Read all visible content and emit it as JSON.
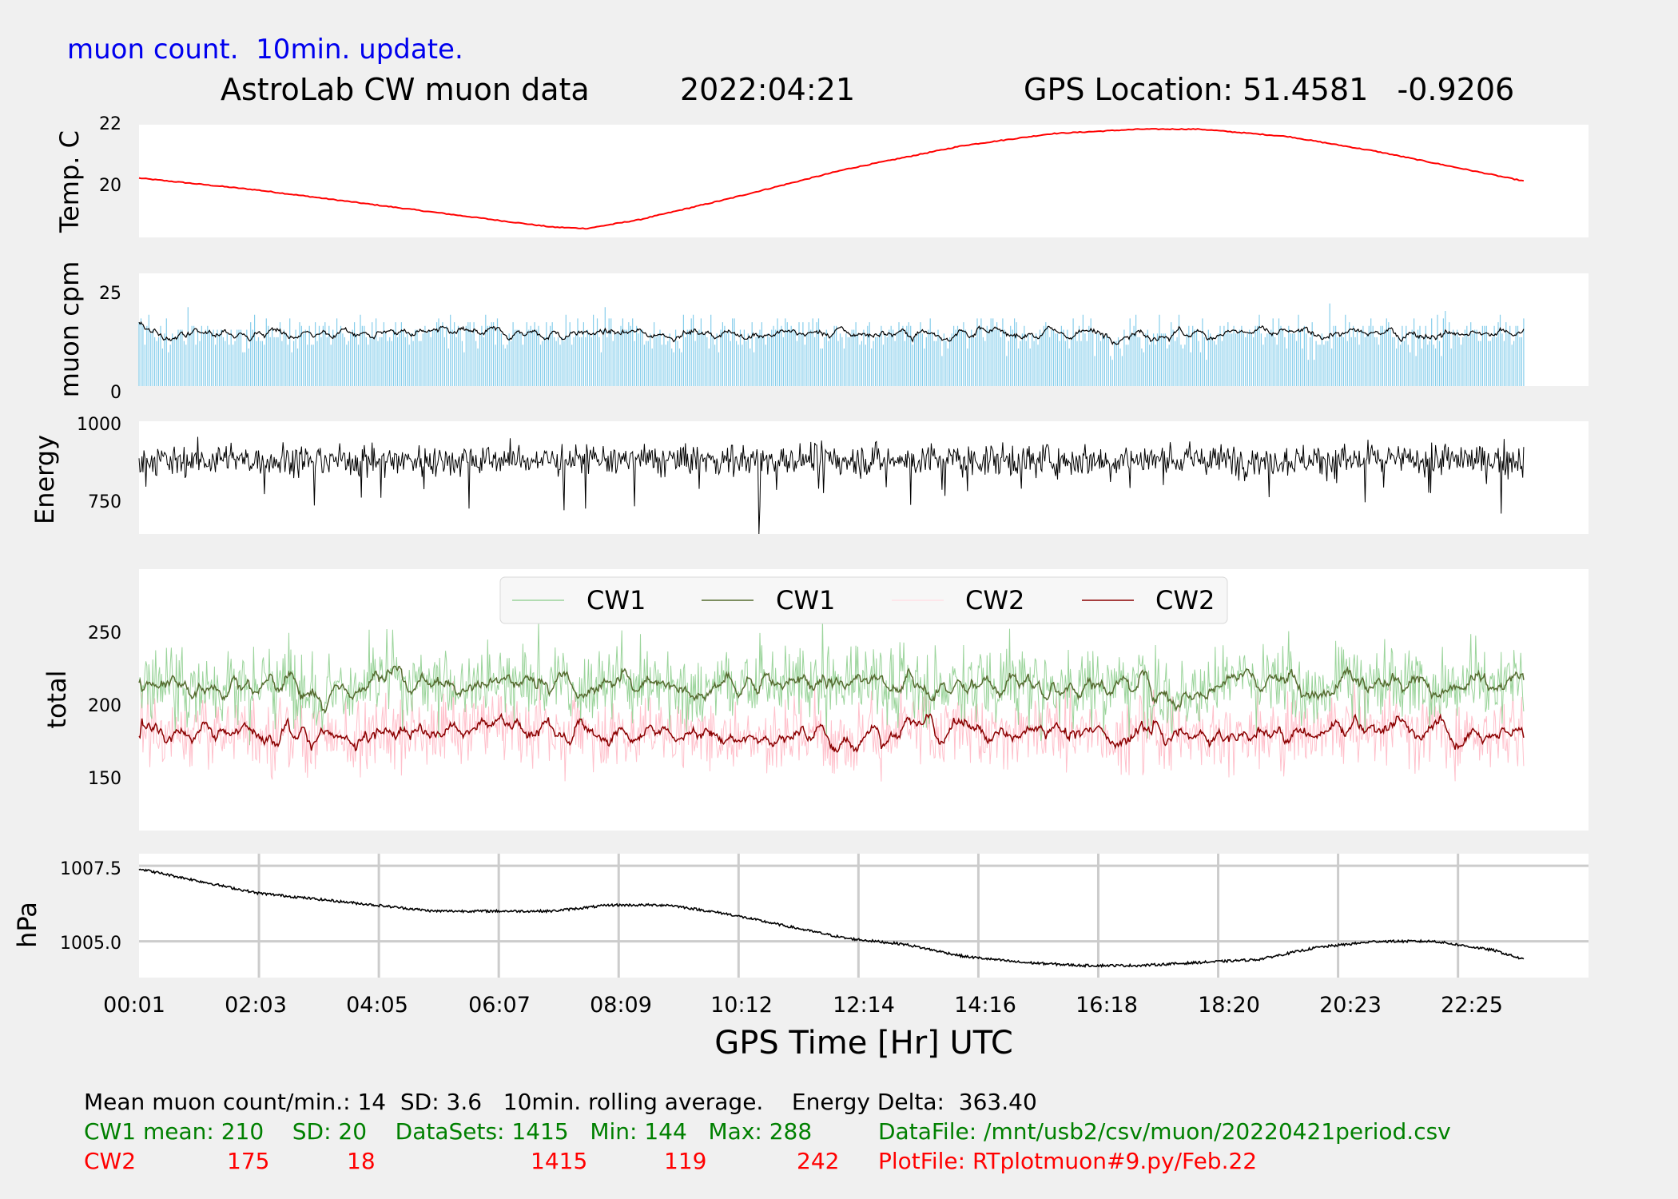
{
  "header": {
    "note": "muon count.  10min. update.",
    "title": "AstroLab CW muon data",
    "date": "2022:04:21",
    "gps": "GPS Location: 51.4581   -0.9206"
  },
  "chart_data": [
    {
      "type": "line",
      "ylabel": "Temp. C",
      "ylim": [
        18.2,
        22
      ],
      "yticks": [
        "22",
        "20"
      ],
      "series": [
        {
          "color": "#ff0000",
          "x": [
            0.0,
            2.0,
            4.0,
            6.0,
            7.0,
            7.6,
            8.5,
            10.0,
            12.0,
            14.0,
            15.5,
            17.0,
            18.0,
            19.5,
            21.0,
            22.5,
            23.5
          ],
          "values": [
            20.2,
            19.8,
            19.3,
            18.8,
            18.55,
            18.5,
            18.8,
            19.5,
            20.5,
            21.3,
            21.7,
            21.85,
            21.85,
            21.6,
            21.1,
            20.5,
            20.1
          ]
        }
      ]
    },
    {
      "type": "bar+line",
      "ylabel": "muon cpm",
      "ylim": [
        0,
        30
      ],
      "yticks": [
        "25",
        "0"
      ],
      "series": [
        {
          "kind": "bar",
          "color": "#87ceeb",
          "mean": 14,
          "sd": 3.6
        },
        {
          "kind": "rolling",
          "color": "#000000",
          "window": "10min"
        }
      ]
    },
    {
      "type": "line",
      "ylabel": "Energy",
      "ylim": [
        660,
        1010
      ],
      "yticks": [
        "1000",
        "750"
      ],
      "series": [
        {
          "color": "#000000",
          "approx_mean": 890,
          "approx_min": 660,
          "approx_max": 1000
        }
      ]
    },
    {
      "type": "line",
      "ylabel": "total",
      "ylim": [
        105,
        290
      ],
      "yticks": [
        "250",
        "200",
        "150"
      ],
      "legend": [
        "CW1",
        "CW1",
        "CW2",
        "CW2"
      ],
      "legend_position": "top-center",
      "series": [
        {
          "name": "CW1",
          "kind": "raw",
          "color": "#9bd49b",
          "mean": 210,
          "sd": 20
        },
        {
          "name": "CW1",
          "kind": "rolling",
          "color": "#556b2f",
          "mean": 210
        },
        {
          "name": "CW2",
          "kind": "raw",
          "color": "#ffc0cb",
          "mean": 175,
          "sd": 18
        },
        {
          "name": "CW2",
          "kind": "rolling",
          "color": "#8b0000",
          "mean": 175
        }
      ]
    },
    {
      "type": "line",
      "ylabel": "hPa",
      "ylim": [
        1003.8,
        1007.9
      ],
      "yticks": [
        "1007.5",
        "1005.0"
      ],
      "ytick_values": [
        1007.5,
        1005.0
      ],
      "grid": true,
      "xlabel": "GPS Time  [Hr] UTC",
      "xticks": [
        "00:01",
        "02:03",
        "04:05",
        "06:07",
        "08:09",
        "10:12",
        "12:14",
        "14:16",
        "16:18",
        "18:20",
        "20:23",
        "22:25"
      ],
      "series": [
        {
          "color": "#000000",
          "x": [
            0.0,
            1.0,
            2.0,
            3.0,
            4.0,
            5.0,
            6.0,
            7.0,
            8.0,
            9.0,
            10.0,
            11.0,
            12.0,
            13.0,
            14.0,
            15.0,
            16.0,
            17.0,
            18.0,
            19.0,
            20.0,
            21.0,
            22.0,
            23.0,
            23.5
          ],
          "values": [
            1007.4,
            1007.0,
            1006.6,
            1006.4,
            1006.2,
            1006.0,
            1006.0,
            1006.0,
            1006.2,
            1006.2,
            1005.9,
            1005.5,
            1005.1,
            1004.9,
            1004.5,
            1004.3,
            1004.2,
            1004.2,
            1004.3,
            1004.4,
            1004.8,
            1005.0,
            1005.0,
            1004.7,
            1004.4
          ]
        }
      ]
    }
  ],
  "footer": {
    "line1": "Mean muon count/min.: 14  SD: 3.6   10min. rolling average.    Energy Delta:  363.40",
    "cw1": "CW1 mean: 210    SD: 20    DataSets: 1415   Min: 144   Max: 288",
    "cw1_file": "DataFile: /mnt/usb2/csv/muon/20220421period.csv",
    "cw2_label": "CW2",
    "cw2_mean": "175",
    "cw2_sd": "18",
    "cw2_sets": "1415",
    "cw2_min": "119",
    "cw2_max": "242",
    "cw2_file": "PlotFile: RTplotmuon#9.py/Feb.22",
    "colors": {
      "line1": "#000000",
      "cw1": "#008000",
      "cw2": "#ff0000"
    }
  }
}
